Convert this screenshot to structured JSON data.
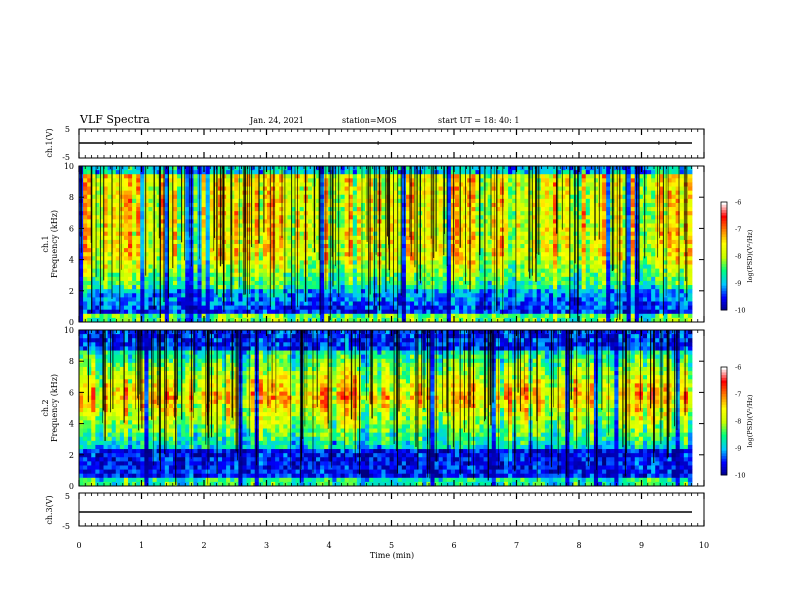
{
  "header": {
    "title": "VLF Spectra",
    "date": "Jan. 24, 2021",
    "station": "station=MOS",
    "start_ut": "start UT =  18: 40: 1"
  },
  "chart_data": [
    {
      "name": "ch1-voltage",
      "type": "line",
      "ylabel": "ch.1(V)",
      "ylim": [
        -5,
        5
      ],
      "yticks": [
        "5",
        "-5"
      ],
      "xlim": [
        0,
        10
      ],
      "baseline_value": 0
    },
    {
      "name": "ch1-spectrogram",
      "type": "heatmap",
      "ylabel": "ch.1\nFrequency (kHz)",
      "ylabel_lines": [
        "ch.1",
        "Frequency (kHz)"
      ],
      "ylim": [
        0,
        10
      ],
      "yticks": [
        "0",
        "2",
        "4",
        "6",
        "8",
        "10"
      ],
      "xlim": [
        0,
        10
      ],
      "colorbar": {
        "label": "log(PSD)(V²/Hz)",
        "range": [
          -10,
          -6
        ],
        "ticks": [
          "-6",
          "-7",
          "-8",
          "-9",
          "-10"
        ],
        "colormap": [
          "#000080",
          "#0000ff",
          "#00c8ff",
          "#00ff80",
          "#c8ff00",
          "#ffff00",
          "#ff8000",
          "#ff0000",
          "#ffffff"
        ]
      },
      "band_profile": "broad"
    },
    {
      "name": "ch2-spectrogram",
      "type": "heatmap",
      "ylabel": "ch.2\nFrequency (kHz)",
      "ylabel_lines": [
        "ch.2",
        "Frequency (kHz)"
      ],
      "ylim": [
        0,
        10
      ],
      "yticks": [
        "0",
        "2",
        "4",
        "6",
        "8",
        "10"
      ],
      "xlim": [
        0,
        10
      ],
      "colorbar": {
        "label": "log(PSD)(V²/Hz)",
        "range": [
          -10,
          -6
        ],
        "ticks": [
          "-6",
          "-7",
          "-8",
          "-9",
          "-10"
        ],
        "colormap": [
          "#000080",
          "#0000ff",
          "#00c8ff",
          "#00ff80",
          "#c8ff00",
          "#ffff00",
          "#ff8000",
          "#ff0000",
          "#ffffff"
        ]
      },
      "band_profile": "mid"
    },
    {
      "name": "ch3-voltage",
      "type": "line",
      "ylabel": "ch.3(V)",
      "ylim": [
        -5,
        5
      ],
      "yticks": [
        "5",
        "-5"
      ],
      "xlim": [
        0,
        10
      ],
      "baseline_value": 0,
      "xlabel": "Time (min)",
      "xticks": [
        "0",
        "1",
        "2",
        "3",
        "4",
        "5",
        "6",
        "7",
        "8",
        "9",
        "10"
      ]
    }
  ]
}
